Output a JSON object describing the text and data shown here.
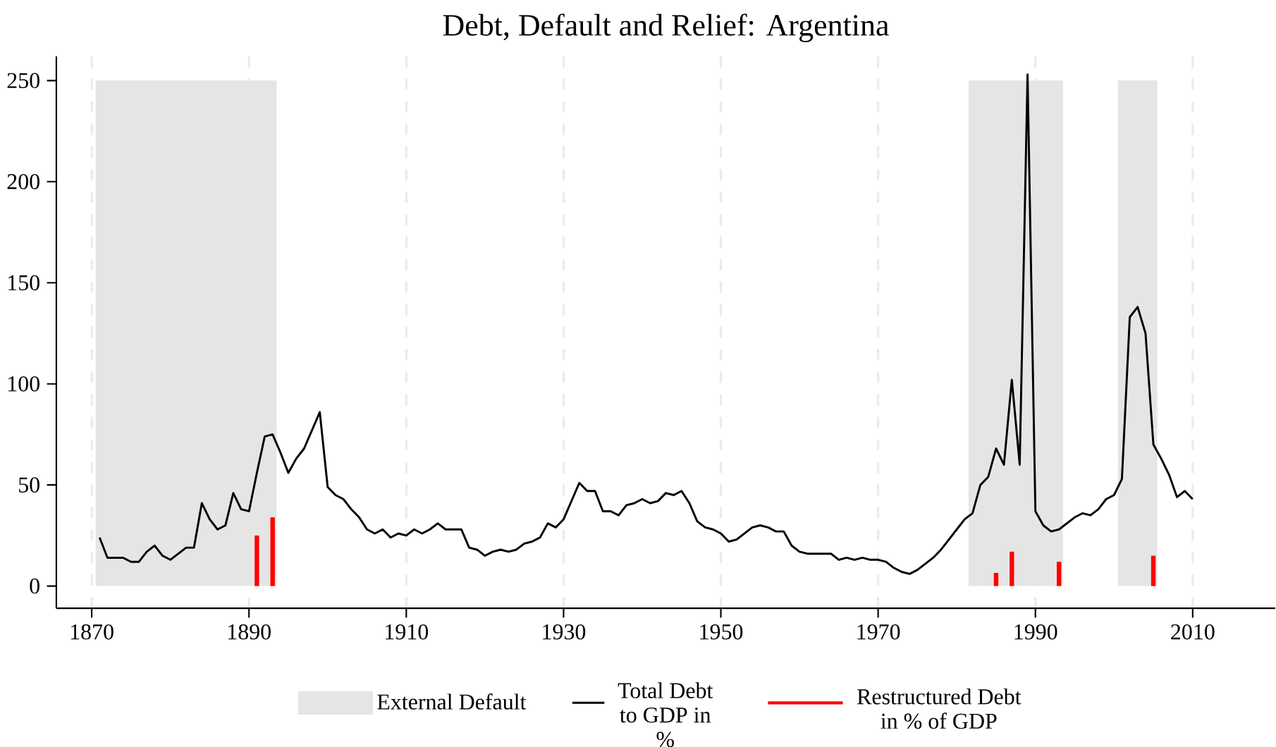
{
  "chart_data": {
    "type": "line",
    "title": "Debt, Default and Relief: Argentina",
    "series": [
      {
        "name": "Total Debt to GDP in %",
        "color": "#000000",
        "x": [
          1871,
          1872,
          1873,
          1874,
          1875,
          1876,
          1877,
          1878,
          1879,
          1880,
          1881,
          1882,
          1883,
          1884,
          1885,
          1886,
          1887,
          1888,
          1889,
          1890,
          1891,
          1892,
          1893,
          1894,
          1895,
          1896,
          1897,
          1898,
          1899,
          1900,
          1901,
          1902,
          1903,
          1904,
          1905,
          1906,
          1907,
          1908,
          1909,
          1910,
          1911,
          1912,
          1913,
          1914,
          1915,
          1916,
          1917,
          1918,
          1919,
          1920,
          1921,
          1922,
          1923,
          1924,
          1925,
          1926,
          1927,
          1928,
          1929,
          1930,
          1931,
          1932,
          1933,
          1934,
          1935,
          1936,
          1937,
          1938,
          1939,
          1940,
          1941,
          1942,
          1943,
          1944,
          1945,
          1946,
          1947,
          1948,
          1949,
          1950,
          1951,
          1952,
          1953,
          1954,
          1955,
          1956,
          1957,
          1958,
          1959,
          1960,
          1961,
          1962,
          1963,
          1964,
          1965,
          1966,
          1967,
          1968,
          1969,
          1970,
          1971,
          1972,
          1973,
          1974,
          1975,
          1976,
          1977,
          1978,
          1979,
          1980,
          1981,
          1982,
          1983,
          1984,
          1985,
          1986,
          1987,
          1988,
          1989,
          1990,
          1991,
          1992,
          1993,
          1994,
          1995,
          1996,
          1997,
          1998,
          1999,
          2000,
          2001,
          2002,
          2003,
          2004,
          2005,
          2006,
          2007,
          2008,
          2009,
          2010
        ],
        "values": [
          24,
          14,
          14,
          14,
          12,
          12,
          17,
          20,
          15,
          13,
          16,
          19,
          19,
          41,
          33,
          28,
          30,
          46,
          38,
          37,
          56,
          74,
          75,
          66,
          56,
          63,
          68,
          77,
          86,
          49,
          45,
          43,
          38,
          34,
          28,
          26,
          28,
          24,
          26,
          25,
          28,
          26,
          28,
          31,
          28,
          28,
          28,
          19,
          18,
          15,
          17,
          18,
          17,
          18,
          21,
          22,
          24,
          31,
          29,
          33,
          42,
          51,
          47,
          47,
          37,
          37,
          35,
          40,
          41,
          43,
          41,
          42,
          46,
          45,
          47,
          41,
          32,
          29,
          28,
          26,
          22,
          23,
          26,
          29,
          30,
          29,
          27,
          27,
          20,
          17,
          16,
          16,
          16,
          16,
          13,
          14,
          13,
          14,
          13,
          13,
          12,
          9,
          7,
          6,
          8,
          11,
          14,
          18,
          23,
          28,
          33,
          36,
          50,
          54,
          68,
          60,
          102,
          60,
          253,
          37,
          30,
          27,
          28,
          31,
          34,
          36,
          35,
          38,
          43,
          45,
          53,
          133,
          138,
          125,
          70,
          63,
          55,
          44,
          47,
          43
        ]
      },
      {
        "name": "Restructured Debt in % of GDP",
        "type": "bar",
        "color": "#ff0000",
        "x": [
          1891,
          1893,
          1985,
          1987,
          1993,
          2005
        ],
        "values": [
          25,
          34,
          6.5,
          17,
          12,
          15
        ]
      }
    ],
    "bands": [
      {
        "axis": "x",
        "from": 1870.5,
        "to": 1893.5,
        "label": "External Default",
        "color": "#e5e5e5"
      },
      {
        "axis": "x",
        "from": 1981.5,
        "to": 1993.5,
        "color": "#e5e5e5"
      },
      {
        "axis": "x",
        "from": 2000.5,
        "to": 2005.5,
        "color": "#e5e5e5"
      }
    ],
    "xlim": [
      1865.5,
      2020.5
    ],
    "ylim": [
      -11,
      262
    ],
    "xticks": [
      1870,
      1890,
      1910,
      1930,
      1950,
      1970,
      1990,
      2010
    ],
    "yticks": [
      0,
      50,
      100,
      150,
      200,
      250
    ],
    "grid": "x",
    "legend": "bottom",
    "marker": "none",
    "line_style": "solid"
  }
}
